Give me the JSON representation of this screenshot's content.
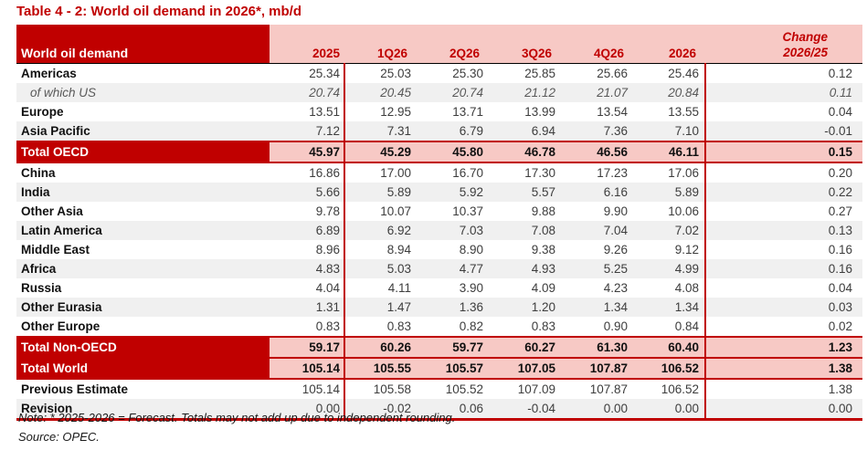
{
  "title": "Table 4 - 2: World oil demand in 2026*, mb/d",
  "header": {
    "label": "World oil demand",
    "columns": [
      "2025",
      "1Q26",
      "2Q26",
      "3Q26",
      "4Q26",
      "2026"
    ],
    "change": {
      "line1": "Change",
      "line2": "2026/25"
    }
  },
  "rows": [
    {
      "label": "Americas",
      "type": "normal",
      "values": [
        "25.34",
        "25.03",
        "25.30",
        "25.85",
        "25.66",
        "25.46",
        "0.12"
      ]
    },
    {
      "label": "of which US",
      "type": "sub",
      "values": [
        "20.74",
        "20.45",
        "20.74",
        "21.12",
        "21.07",
        "20.84",
        "0.11"
      ]
    },
    {
      "label": "Europe",
      "type": "normal",
      "values": [
        "13.51",
        "12.95",
        "13.71",
        "13.99",
        "13.54",
        "13.55",
        "0.04"
      ]
    },
    {
      "label": "Asia Pacific",
      "type": "normal",
      "values": [
        "7.12",
        "7.31",
        "6.79",
        "6.94",
        "7.36",
        "7.10",
        "-0.01"
      ]
    },
    {
      "label": "Total OECD",
      "type": "total",
      "values": [
        "45.97",
        "45.29",
        "45.80",
        "46.78",
        "46.56",
        "46.11",
        "0.15"
      ]
    },
    {
      "label": "China",
      "type": "normal",
      "values": [
        "16.86",
        "17.00",
        "16.70",
        "17.30",
        "17.23",
        "17.06",
        "0.20"
      ]
    },
    {
      "label": "India",
      "type": "normal",
      "values": [
        "5.66",
        "5.89",
        "5.92",
        "5.57",
        "6.16",
        "5.89",
        "0.22"
      ]
    },
    {
      "label": "Other Asia",
      "type": "normal",
      "values": [
        "9.78",
        "10.07",
        "10.37",
        "9.88",
        "9.90",
        "10.06",
        "0.27"
      ]
    },
    {
      "label": "Latin America",
      "type": "normal",
      "values": [
        "6.89",
        "6.92",
        "7.03",
        "7.08",
        "7.04",
        "7.02",
        "0.13"
      ]
    },
    {
      "label": "Middle East",
      "type": "normal",
      "values": [
        "8.96",
        "8.94",
        "8.90",
        "9.38",
        "9.26",
        "9.12",
        "0.16"
      ]
    },
    {
      "label": "Africa",
      "type": "normal",
      "values": [
        "4.83",
        "5.03",
        "4.77",
        "4.93",
        "5.25",
        "4.99",
        "0.16"
      ]
    },
    {
      "label": "Russia",
      "type": "normal",
      "values": [
        "4.04",
        "4.11",
        "3.90",
        "4.09",
        "4.23",
        "4.08",
        "0.04"
      ]
    },
    {
      "label": "Other Eurasia",
      "type": "normal",
      "values": [
        "1.31",
        "1.47",
        "1.36",
        "1.20",
        "1.34",
        "1.34",
        "0.03"
      ]
    },
    {
      "label": "Other Europe",
      "type": "normal",
      "values": [
        "0.83",
        "0.83",
        "0.82",
        "0.83",
        "0.90",
        "0.84",
        "0.02"
      ]
    },
    {
      "label": "Total Non-OECD",
      "type": "total",
      "values": [
        "59.17",
        "60.26",
        "59.77",
        "60.27",
        "61.30",
        "60.40",
        "1.23"
      ]
    },
    {
      "label": "Total World",
      "type": "total",
      "values": [
        "105.14",
        "105.55",
        "105.57",
        "107.05",
        "107.87",
        "106.52",
        "1.38"
      ]
    },
    {
      "label": "Previous Estimate",
      "type": "normal",
      "values": [
        "105.14",
        "105.58",
        "105.52",
        "107.09",
        "107.87",
        "106.52",
        "1.38"
      ]
    },
    {
      "label": "Revision",
      "type": "normal",
      "values": [
        "0.00",
        "-0.02",
        "0.06",
        "-0.04",
        "0.00",
        "0.00",
        "0.00"
      ]
    }
  ],
  "footnotes": {
    "note": "Note: * 2025-2026 = Forecast. Totals may not add up due to independent rounding.",
    "source": "Source: OPEC."
  },
  "colors": {
    "dark_red": "#c00000",
    "pink": "#f7c9c5",
    "stripe_gray": "#f0f0f0",
    "header_text": "#ffffff"
  }
}
